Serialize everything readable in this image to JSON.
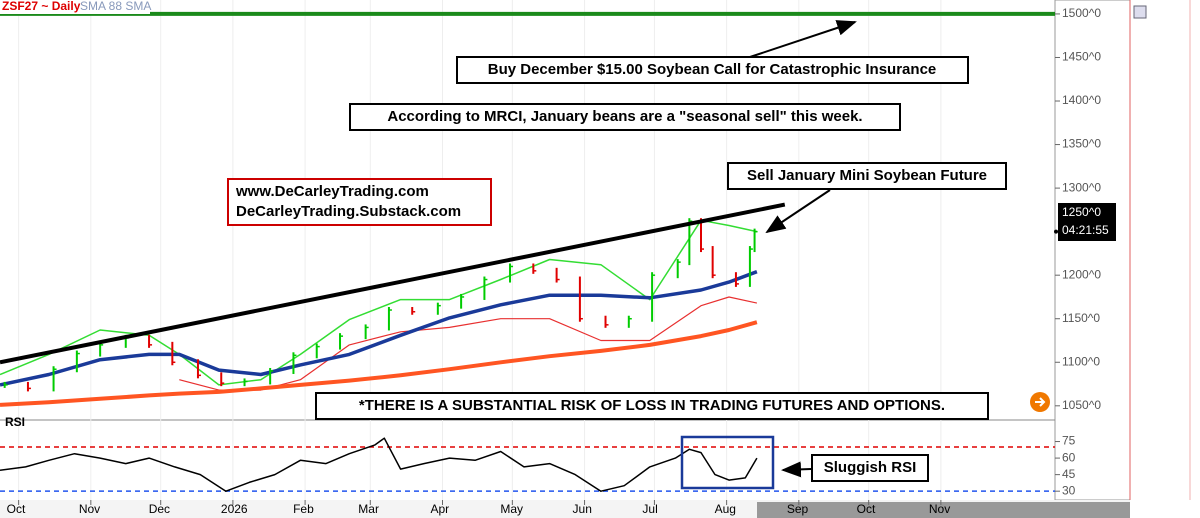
{
  "chart_data": [
    {
      "type": "ohlc",
      "title": "ZSF27 ~ Daily",
      "subtitle": "SMA 88 SMA",
      "xlim": [
        -8,
        445
      ],
      "ylim": [
        1036,
        1516
      ],
      "xticks": [
        {
          "value": 0,
          "label": "Oct"
        },
        {
          "value": 31,
          "label": "Nov"
        },
        {
          "value": 61,
          "label": "Dec"
        },
        {
          "value": 92,
          "label": "2026"
        },
        {
          "value": 123,
          "label": "Feb"
        },
        {
          "value": 151,
          "label": "Mar"
        },
        {
          "value": 182,
          "label": "Apr"
        },
        {
          "value": 212,
          "label": "May"
        },
        {
          "value": 243,
          "label": "Jun"
        },
        {
          "value": 273,
          "label": "Jul"
        },
        {
          "value": 304,
          "label": "Aug"
        },
        {
          "value": 335,
          "label": "Sep"
        },
        {
          "value": 365,
          "label": "Oct"
        },
        {
          "value": 396,
          "label": "Nov"
        }
      ],
      "yticks": [
        {
          "value": 1050,
          "label": "1050^0"
        },
        {
          "value": 1100,
          "label": "1100^0"
        },
        {
          "value": 1150,
          "label": "1150^0"
        },
        {
          "value": 1200,
          "label": "1200^0"
        },
        {
          "value": 1250,
          "label": "1250^0"
        },
        {
          "value": 1300,
          "label": "1300^0"
        },
        {
          "value": 1350,
          "label": "1350^0"
        },
        {
          "value": 1400,
          "label": "1400^0"
        },
        {
          "value": 1450,
          "label": "1450^0"
        },
        {
          "value": 1500,
          "label": "1500^0"
        }
      ],
      "series": [
        {
          "style": "bars",
          "up_color": "#00cc00",
          "down_color": "#e00000",
          "x": [
            -6,
            4,
            15,
            25,
            35,
            46,
            56,
            66,
            77,
            87,
            97,
            108,
            118,
            128,
            138,
            149,
            159,
            169,
            180,
            190,
            200,
            211,
            221,
            231,
            241,
            252,
            262,
            272,
            283,
            288,
            293,
            298,
            308,
            314,
            316
          ],
          "values": [
            1074,
            1070,
            1092,
            1110,
            1120,
            1128,
            1120,
            1100,
            1085,
            1076,
            1078,
            1090,
            1108,
            1118,
            1130,
            1140,
            1160,
            1158,
            1165,
            1175,
            1195,
            1210,
            1205,
            1195,
            1150,
            1143,
            1150,
            1200,
            1215,
            1262,
            1230,
            1200,
            1190,
            1230,
            1250
          ]
        },
        {
          "style": "line",
          "color": "#33dd33",
          "width": 1.5,
          "x": [
            -8,
            13,
            35,
            56,
            69,
            86,
            104,
            121,
            142,
            164,
            185,
            207,
            228,
            250,
            271,
            293,
            305,
            317
          ],
          "values": [
            1086,
            1109,
            1137,
            1131,
            1109,
            1074,
            1080,
            1109,
            1149,
            1172,
            1172,
            1195,
            1218,
            1212,
            1172,
            1263,
            1257,
            1250
          ]
        },
        {
          "style": "line",
          "color": "#e83030",
          "width": 1.2,
          "x": [
            -8,
            13,
            35,
            56,
            69,
            86,
            104,
            121,
            142,
            164,
            185,
            207,
            228,
            250,
            271,
            293,
            305,
            317
          ],
          "values": [
            null,
            null,
            null,
            null,
            1080,
            1068,
            1068,
            1080,
            1120,
            1135,
            1140,
            1150,
            1150,
            1125,
            1125,
            1165,
            1175,
            1168
          ]
        },
        {
          "style": "line",
          "color": "#ff5522",
          "width": 4,
          "x": [
            -8,
            13,
            35,
            56,
            69,
            86,
            104,
            121,
            142,
            164,
            185,
            207,
            228,
            250,
            271,
            293,
            305,
            317
          ],
          "values": [
            1051,
            1054,
            1058,
            1062,
            1064,
            1066,
            1070,
            1074,
            1079,
            1085,
            1092,
            1100,
            1107,
            1113,
            1120,
            1130,
            1137,
            1146
          ]
        },
        {
          "style": "line",
          "color": "#1a3a99",
          "width": 3.5,
          "x": [
            -8,
            13,
            35,
            56,
            69,
            86,
            104,
            121,
            142,
            164,
            185,
            207,
            228,
            250,
            271,
            293,
            305,
            317
          ],
          "values": [
            1074,
            1086,
            1103,
            1109,
            1109,
            1091,
            1086,
            1097,
            1109,
            1131,
            1151,
            1166,
            1177,
            1177,
            1174,
            1183,
            1192,
            1204
          ]
        },
        {
          "style": "line",
          "color": "#000000",
          "width": 4,
          "x": [
            -8,
            329
          ],
          "values": [
            1100,
            1281
          ]
        },
        {
          "style": "level",
          "color": "#1a8a1a",
          "width": 4,
          "values": [
            1500
          ]
        }
      ],
      "last_price": {
        "value": 1250,
        "label": "1250^0"
      },
      "timer": "04:21:55",
      "annotations": [
        "Buy December $15.00 Soybean Call for Catastrophic Insurance",
        "According to MRCI, January beans are a \"seasonal sell\" this week.",
        "Sell January Mini Soybean Future",
        "www.DeCarleyTrading.com",
        "DeCarleyTrading.Substack.com",
        "*THERE IS A SUBSTANTIAL RISK OF LOSS IN TRADING FUTURES AND OPTIONS."
      ]
    },
    {
      "type": "line",
      "title": "RSI",
      "ylim": [
        22,
        90
      ],
      "yticks": [
        30,
        45,
        60,
        75
      ],
      "levels": [
        {
          "value": 70,
          "color": "#e00000"
        },
        {
          "value": 30,
          "color": "#2255ee"
        }
      ],
      "series": [
        {
          "color": "#000000",
          "x": [
            -8,
            3,
            13,
            24,
            35,
            46,
            56,
            67,
            78,
            89,
            99,
            110,
            121,
            132,
            142,
            153,
            157,
            164,
            174,
            185,
            196,
            207,
            217,
            228,
            239,
            250,
            260,
            271,
            282,
            288,
            293,
            299,
            305,
            312,
            317
          ],
          "values": [
            49,
            52,
            58,
            64,
            60,
            55,
            60,
            52,
            45,
            30,
            38,
            45,
            58,
            55,
            64,
            72,
            78,
            50,
            55,
            60,
            58,
            66,
            52,
            55,
            45,
            30,
            35,
            52,
            60,
            68,
            65,
            45,
            40,
            42,
            60
          ]
        }
      ],
      "annotations": [
        "Sluggish RSI"
      ]
    }
  ]
}
